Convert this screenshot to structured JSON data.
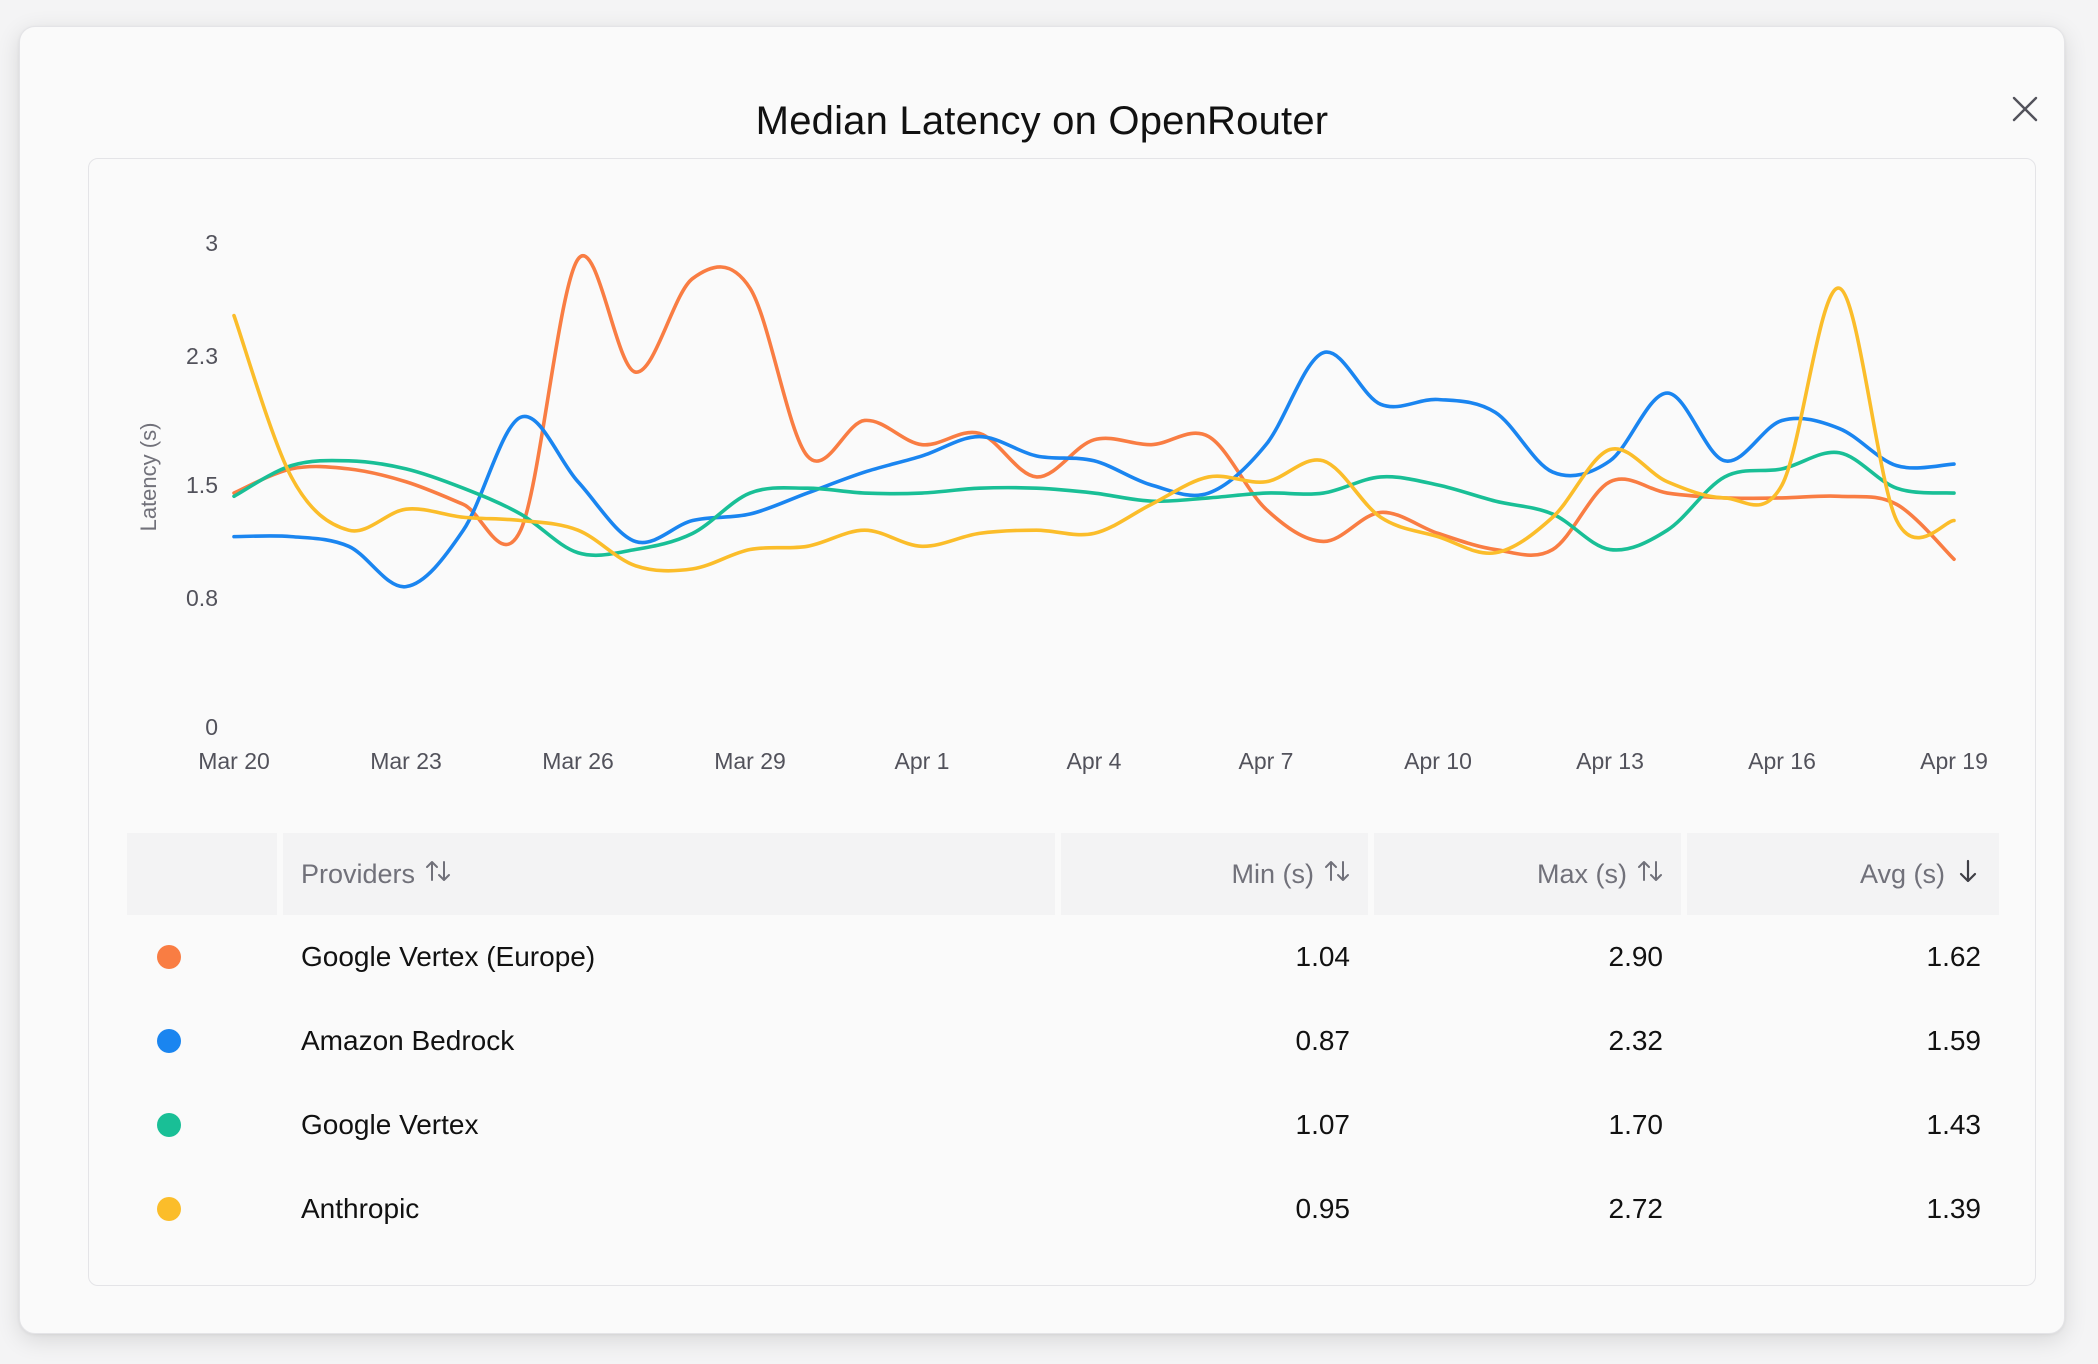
{
  "modal": {
    "title": "Median Latency on OpenRouter"
  },
  "icons": {
    "close": "close-icon",
    "sort": "sort-updown-icon",
    "sort_desc": "arrow-down-icon"
  },
  "chart_data": {
    "type": "line",
    "title": "",
    "xlabel": "",
    "ylabel": "Latency (s)",
    "ylim": [
      0,
      3
    ],
    "yticks": [
      0,
      0.8,
      1.5,
      2.3,
      3
    ],
    "xticks": [
      "Mar 20",
      "Mar 23",
      "Mar 26",
      "Mar 29",
      "Apr 1",
      "Apr 4",
      "Apr 7",
      "Apr 10",
      "Apr 13",
      "Apr 16",
      "Apr 19"
    ],
    "x": [
      "Mar 20",
      "Mar 21",
      "Mar 22",
      "Mar 23",
      "Mar 24",
      "Mar 25",
      "Mar 26",
      "Mar 27",
      "Mar 28",
      "Mar 29",
      "Mar 30",
      "Mar 31",
      "Apr 1",
      "Apr 2",
      "Apr 3",
      "Apr 4",
      "Apr 5",
      "Apr 6",
      "Apr 7",
      "Apr 8",
      "Apr 9",
      "Apr 10",
      "Apr 11",
      "Apr 12",
      "Apr 13",
      "Apr 14",
      "Apr 15",
      "Apr 16",
      "Apr 17",
      "Apr 18",
      "Apr 19"
    ],
    "grid": false,
    "legend": "table below chart",
    "series": [
      {
        "name": "Google Vertex (Europe)",
        "color": "#f97d43",
        "values": [
          1.45,
          1.6,
          1.6,
          1.52,
          1.38,
          1.22,
          2.9,
          2.2,
          2.78,
          2.72,
          1.68,
          1.9,
          1.75,
          1.82,
          1.55,
          1.78,
          1.75,
          1.8,
          1.35,
          1.15,
          1.33,
          1.2,
          1.1,
          1.1,
          1.52,
          1.45,
          1.42,
          1.42,
          1.43,
          1.38,
          1.04
        ]
      },
      {
        "name": "Amazon Bedrock",
        "color": "#1a85f0",
        "values": [
          1.18,
          1.18,
          1.12,
          0.87,
          1.22,
          1.92,
          1.52,
          1.15,
          1.28,
          1.32,
          1.45,
          1.58,
          1.68,
          1.8,
          1.68,
          1.65,
          1.5,
          1.45,
          1.75,
          2.32,
          2.0,
          2.03,
          1.95,
          1.58,
          1.65,
          2.07,
          1.65,
          1.9,
          1.85,
          1.62,
          1.63
        ]
      },
      {
        "name": "Google Vertex",
        "color": "#19bf96",
        "values": [
          1.43,
          1.62,
          1.65,
          1.6,
          1.48,
          1.32,
          1.08,
          1.1,
          1.2,
          1.45,
          1.48,
          1.45,
          1.45,
          1.48,
          1.48,
          1.45,
          1.4,
          1.42,
          1.45,
          1.45,
          1.55,
          1.5,
          1.4,
          1.32,
          1.1,
          1.22,
          1.55,
          1.6,
          1.7,
          1.48,
          1.45
        ]
      },
      {
        "name": "Anthropic",
        "color": "#fbbd2a",
        "values": [
          2.55,
          1.55,
          1.22,
          1.35,
          1.3,
          1.28,
          1.22,
          1.0,
          0.98,
          1.1,
          1.12,
          1.22,
          1.12,
          1.2,
          1.22,
          1.2,
          1.38,
          1.55,
          1.52,
          1.65,
          1.3,
          1.18,
          1.08,
          1.3,
          1.72,
          1.52,
          1.42,
          1.5,
          2.72,
          1.28,
          1.28
        ]
      }
    ]
  },
  "table": {
    "headers": {
      "provider": "Providers",
      "min": "Min (s)",
      "max": "Max (s)",
      "avg": "Avg (s)"
    },
    "rows": [
      {
        "provider": "Google Vertex (Europe)",
        "color": "#f97d43",
        "min": "1.04",
        "max": "2.90",
        "avg": "1.62"
      },
      {
        "provider": "Amazon Bedrock",
        "color": "#1a85f0",
        "min": "0.87",
        "max": "2.32",
        "avg": "1.59"
      },
      {
        "provider": "Google Vertex",
        "color": "#19bf96",
        "min": "1.07",
        "max": "1.70",
        "avg": "1.43"
      },
      {
        "provider": "Anthropic",
        "color": "#fbbd2a",
        "min": "0.95",
        "max": "2.72",
        "avg": "1.39"
      }
    ]
  }
}
